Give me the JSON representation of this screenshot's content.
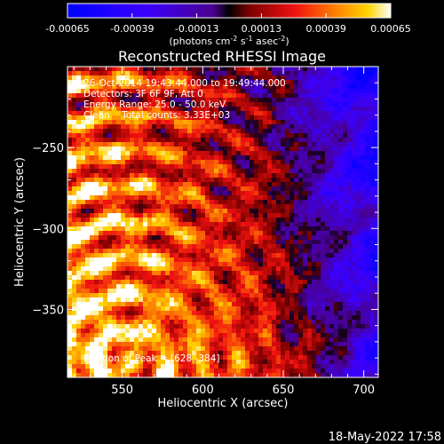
{
  "chart_data": {
    "type": "heatmap",
    "title": "Reconstructed RHESSI Image",
    "xlabel": "Heliocentric X (arcsec)",
    "ylabel": "Heliocentric Y (arcsec)",
    "xlim": [
      516,
      709
    ],
    "ylim": [
      -392,
      -200
    ],
    "x_ticks": [
      550,
      600,
      650,
      700
    ],
    "y_ticks": [
      -250,
      -300,
      -350
    ],
    "colorbar": {
      "range": [
        -0.00065,
        0.00065
      ],
      "ticks": [
        "-0.00065",
        "-0.00039",
        "-0.00013",
        "0.00013",
        "0.00039",
        "0.00065"
      ],
      "tick_values": [
        -0.00065,
        -0.00039,
        -0.00013,
        0.00013,
        0.00039,
        0.00065
      ],
      "unit_label": "(photons cm",
      "unit_sup1": "-2",
      "unit_mid": " s",
      "unit_sup2": "-1",
      "unit_mid2": " asec",
      "unit_sup3": "-2",
      "unit_end": ")"
    },
    "annotations": [
      "26-Oct-2014 19:43:44.000 to 19:49:44.000",
      "Detectors: 3F 6F 9F, Att 0",
      "Energy Range: 25.0 - 50.0 keV",
      "Clean    Total counts: 3.33E+03"
    ],
    "peak_label": "Position of Peak = [628,-384]",
    "peak": [
      628,
      -384
    ]
  },
  "footer": {
    "timestamp": "18-May-2022 17:58"
  }
}
